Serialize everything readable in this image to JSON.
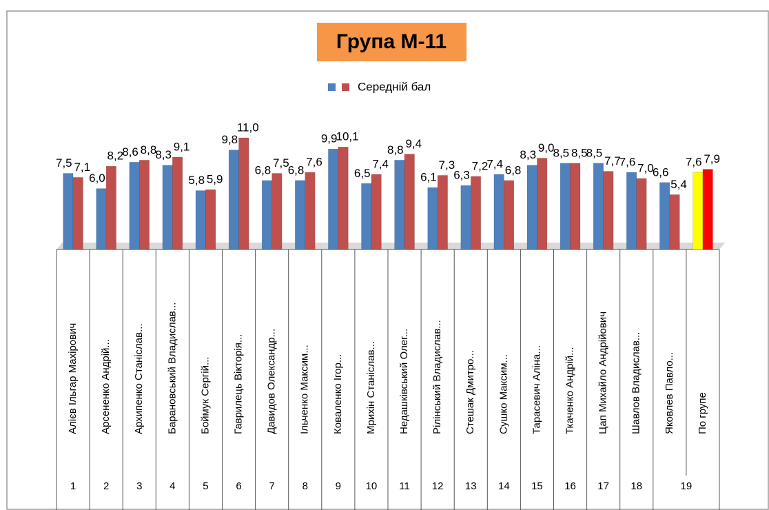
{
  "chart_data": {
    "type": "bar",
    "title": "Група М-11",
    "categories": [
      "Алієв Ільгар Махірович",
      "Арсененко Андрій...",
      "Архипенко Станіслав...",
      "Барановський Владислав...",
      "Боймук Сергій...",
      "Гаврилець Вікторія...",
      "Давидов Олександр...",
      "Ільченко Максим...",
      "Коваленко Ігор...",
      "Мрихін Станіслав...",
      "Недашківський Олег...",
      "Рілінський Владислав...",
      "Стешак Дмитро...",
      "Сушко Максим...",
      "Тарасевич Аліна...",
      "Ткаченко Андрій...",
      "Цап Михайло Андрійович",
      "Шавлов Владислав...",
      "Яковлев Павло...",
      "По групе"
    ],
    "row_numbers": [
      "1",
      "2",
      "3",
      "4",
      "5",
      "6",
      "7",
      "8",
      "9",
      "10",
      "11",
      "12",
      "13",
      "14",
      "15",
      "16",
      "17",
      "18",
      "19"
    ],
    "series": [
      {
        "color": "#4f81bd",
        "colors": [
          "#4f81bd",
          "#4f81bd",
          "#4f81bd",
          "#4f81bd",
          "#4f81bd",
          "#4f81bd",
          "#4f81bd",
          "#4f81bd",
          "#4f81bd",
          "#4f81bd",
          "#4f81bd",
          "#4f81bd",
          "#4f81bd",
          "#4f81bd",
          "#4f81bd",
          "#4f81bd",
          "#4f81bd",
          "#4f81bd",
          "#4f81bd",
          "#ffff00"
        ],
        "values": [
          7.5,
          6.0,
          8.6,
          8.3,
          5.8,
          9.8,
          6.8,
          6.8,
          9.9,
          6.5,
          8.8,
          6.1,
          6.3,
          7.4,
          8.3,
          8.5,
          8.5,
          7.6,
          6.6,
          7.6
        ],
        "value_labels": [
          "7,5",
          "6,0",
          "8,6",
          "8,3",
          "5,8",
          "9,8",
          "6,8",
          "6,8",
          "9,9",
          "6,5",
          "8,8",
          "6,1",
          "6,3",
          "7,4",
          "8,3",
          "8,5",
          "8,5",
          "7,6",
          "6,6",
          "7,6"
        ]
      },
      {
        "name": "Середній бал",
        "color": "#c0504d",
        "colors": [
          "#c0504d",
          "#c0504d",
          "#c0504d",
          "#c0504d",
          "#c0504d",
          "#c0504d",
          "#c0504d",
          "#c0504d",
          "#c0504d",
          "#c0504d",
          "#c0504d",
          "#c0504d",
          "#c0504d",
          "#c0504d",
          "#c0504d",
          "#c0504d",
          "#c0504d",
          "#c0504d",
          "#c0504d",
          "#ff0000"
        ],
        "values": [
          7.1,
          8.2,
          8.8,
          9.1,
          5.9,
          11.0,
          7.5,
          7.6,
          10.1,
          7.4,
          9.4,
          7.3,
          7.2,
          6.8,
          9.0,
          8.5,
          7.7,
          7.0,
          5.4,
          7.9
        ],
        "value_labels": [
          "7,1",
          "8,2",
          "8,8",
          "9,1",
          "5,9",
          "11,0",
          "7,5",
          "7,6",
          "10,1",
          "7,4",
          "9,4",
          "7,3",
          "7,2",
          "6,8",
          "9,0",
          "8,5",
          "7,7",
          "7,0",
          "5,4",
          "7,9"
        ]
      }
    ]
  }
}
